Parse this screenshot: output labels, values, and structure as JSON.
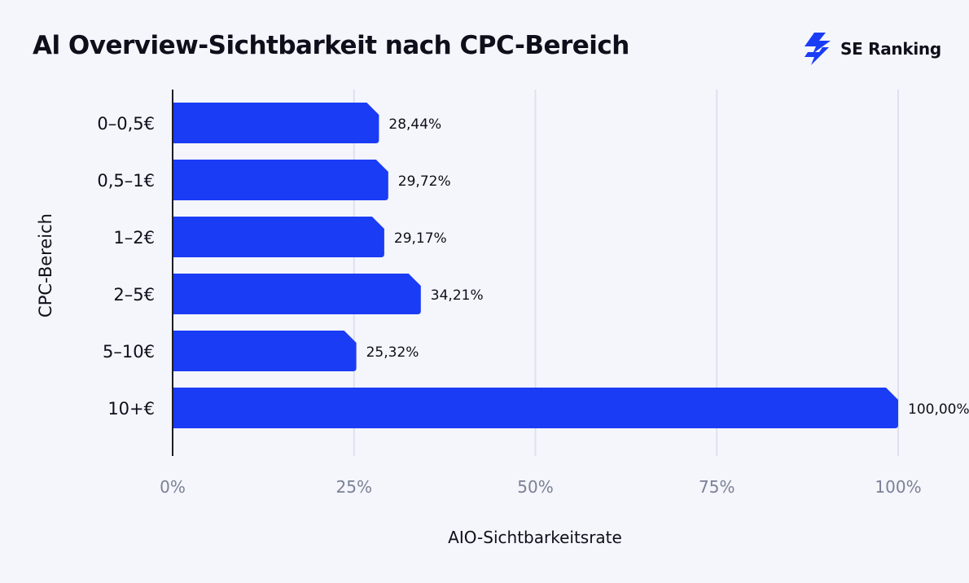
{
  "brand": {
    "name": "SE Ranking",
    "icon": "se-ranking-logo-icon",
    "color": "#1a3cf5"
  },
  "chart_data": {
    "type": "bar",
    "orientation": "horizontal",
    "title": "Al Overview-Sichtbarkeit nach CPC-Bereich",
    "xlabel": "AIO-Sichtbarkeitsrate",
    "ylabel": "CPC-Bereich",
    "categories": [
      "0–0,5€",
      "0,5–1€",
      "1–2€",
      "2–5€",
      "5–10€",
      "10+€"
    ],
    "values": [
      28.44,
      29.72,
      29.17,
      34.21,
      25.32,
      100.0
    ],
    "value_labels": [
      "28,44%",
      "29,72%",
      "29,17%",
      "34,21%",
      "25,32%",
      "100,00%"
    ],
    "xlim": [
      0,
      100
    ],
    "xticks": [
      0,
      25,
      50,
      75,
      100
    ],
    "xtick_labels": [
      "0%",
      "25%",
      "50%",
      "75%",
      "100%"
    ],
    "grid": "vertical",
    "legend": "none",
    "colors": {
      "bar": "#1a3cf5",
      "grid": "#dde1ee",
      "tick_label": "#7a8196",
      "axis": "#1b1d28"
    }
  }
}
